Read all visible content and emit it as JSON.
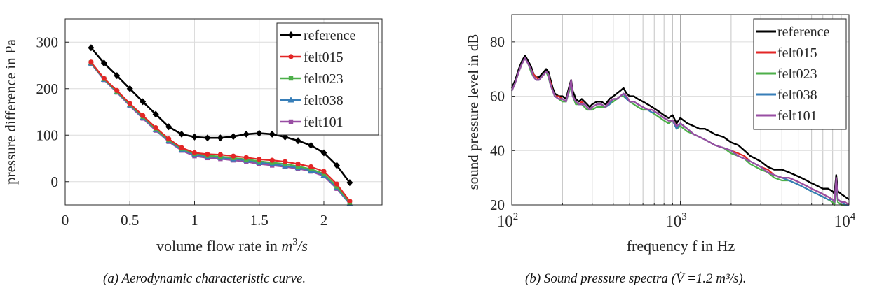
{
  "chart_data": [
    {
      "type": "line",
      "xlabel": "volume flow rate in ",
      "xlabel_math": "m3/s",
      "ylabel": "pressure difference in Pa",
      "xlim": [
        0,
        2.45
      ],
      "ylim": [
        -50,
        350
      ],
      "xticks": [
        0,
        0.5,
        1,
        1.5,
        2
      ],
      "xtick_labels": [
        "0",
        "0.5",
        "1",
        "1.5",
        "2"
      ],
      "yticks": [
        0,
        100,
        200,
        300
      ],
      "ytick_labels": [
        "0",
        "100",
        "200",
        "300"
      ],
      "grid": true,
      "legend": "top-right",
      "x": [
        0.2,
        0.3,
        0.4,
        0.5,
        0.6,
        0.7,
        0.8,
        0.9,
        1.0,
        1.1,
        1.2,
        1.3,
        1.4,
        1.5,
        1.6,
        1.7,
        1.8,
        1.9,
        2.0,
        2.1,
        2.2
      ],
      "series": [
        {
          "name": "reference",
          "color": "#000000",
          "marker": "diamond",
          "values": [
            288,
            255,
            228,
            200,
            172,
            145,
            118,
            102,
            96,
            94,
            94,
            97,
            102,
            104,
            102,
            96,
            88,
            78,
            62,
            35,
            -2
          ]
        },
        {
          "name": "felt015",
          "color": "#e32626",
          "marker": "circle",
          "values": [
            257,
            222,
            196,
            168,
            142,
            116,
            92,
            73,
            62,
            59,
            58,
            55,
            52,
            48,
            46,
            43,
            38,
            32,
            22,
            -5,
            -42
          ]
        },
        {
          "name": "felt023",
          "color": "#4daf4a",
          "marker": "square",
          "values": [
            256,
            221,
            194,
            166,
            140,
            113,
            90,
            71,
            60,
            56,
            54,
            51,
            48,
            44,
            41,
            38,
            33,
            27,
            17,
            -10,
            -45
          ]
        },
        {
          "name": "felt038",
          "color": "#377eb8",
          "marker": "triangle",
          "values": [
            255,
            220,
            193,
            165,
            138,
            112,
            88,
            69,
            58,
            54,
            52,
            49,
            46,
            41,
            38,
            34,
            30,
            24,
            14,
            -13,
            -47
          ]
        },
        {
          "name": "felt101",
          "color": "#984ea3",
          "marker": "square",
          "values": [
            254,
            219,
            192,
            163,
            136,
            110,
            86,
            67,
            55,
            51,
            49,
            46,
            43,
            38,
            35,
            32,
            28,
            22,
            12,
            -15,
            -48
          ]
        }
      ]
    },
    {
      "type": "line",
      "xlabel": "frequency f in Hz",
      "ylabel": "sound pressure level in dB",
      "xscale": "log",
      "xlim": [
        100,
        10000
      ],
      "ylim": [
        20,
        90
      ],
      "xticks": [
        100,
        1000,
        10000
      ],
      "xtick_labels": [
        "10",
        "10",
        "10"
      ],
      "xtick_exponents": [
        "2",
        "3",
        "4"
      ],
      "yticks": [
        20,
        40,
        60,
        80
      ],
      "ytick_labels": [
        "20",
        "40",
        "60",
        "80"
      ],
      "grid": true,
      "legend": "top-right",
      "x": [
        100,
        105,
        110,
        115,
        120,
        125,
        130,
        135,
        140,
        145,
        150,
        155,
        160,
        165,
        170,
        175,
        180,
        190,
        200,
        210,
        220,
        225,
        230,
        240,
        250,
        260,
        270,
        280,
        290,
        300,
        320,
        340,
        360,
        380,
        400,
        420,
        440,
        460,
        480,
        500,
        530,
        560,
        600,
        640,
        680,
        720,
        760,
        800,
        850,
        900,
        950,
        1000,
        1100,
        1200,
        1300,
        1400,
        1500,
        1600,
        1800,
        2000,
        2200,
        2400,
        2600,
        2800,
        3000,
        3300,
        3600,
        4000,
        4400,
        4800,
        5200,
        5600,
        6000,
        6500,
        7000,
        7500,
        8000,
        8200,
        8400,
        8600,
        9000,
        9500,
        10000
      ],
      "series": [
        {
          "name": "reference",
          "color": "#000000",
          "values": [
            63,
            66,
            70,
            73,
            75,
            73,
            71,
            68,
            67,
            67,
            68,
            69,
            70,
            69,
            66,
            63,
            61,
            60,
            60,
            59,
            64,
            66,
            62,
            59,
            58,
            59,
            58,
            57,
            56,
            57,
            58,
            58,
            57,
            59,
            60,
            61,
            62,
            63,
            61,
            60,
            60,
            59,
            58,
            57,
            56,
            55,
            54,
            53,
            52,
            53,
            50,
            52,
            50,
            49,
            48,
            48,
            47,
            46,
            45,
            43,
            42,
            40,
            38,
            37,
            36,
            34,
            33,
            33,
            32,
            31,
            30,
            29,
            28,
            27,
            26,
            26,
            25,
            24,
            31,
            25,
            24,
            23,
            22
          ]
        },
        {
          "name": "felt015",
          "color": "#e32626",
          "values": [
            62,
            65,
            69,
            72,
            74,
            72,
            70,
            68,
            67,
            66,
            67,
            68,
            69,
            68,
            65,
            62,
            60,
            60,
            59,
            58,
            63,
            65,
            60,
            58,
            57,
            58,
            57,
            56,
            55,
            56,
            57,
            57,
            56,
            58,
            59,
            59,
            60,
            61,
            60,
            58,
            58,
            57,
            56,
            55,
            55,
            54,
            53,
            52,
            51,
            51,
            49,
            50,
            48,
            46,
            45,
            44,
            43,
            42,
            41,
            40,
            39,
            38,
            36,
            35,
            34,
            33,
            31,
            30,
            30,
            29,
            28,
            27,
            26,
            25,
            24,
            23,
            22,
            21,
            28,
            22,
            21,
            21,
            20
          ]
        },
        {
          "name": "felt023",
          "color": "#4daf4a",
          "values": [
            62,
            65,
            69,
            72,
            74,
            72,
            69,
            67,
            66,
            66,
            67,
            68,
            69,
            67,
            64,
            62,
            60,
            59,
            58,
            58,
            62,
            65,
            60,
            57,
            57,
            57,
            56,
            55,
            55,
            55,
            56,
            56,
            56,
            57,
            58,
            59,
            60,
            60,
            59,
            58,
            57,
            56,
            55,
            55,
            54,
            53,
            52,
            51,
            50,
            51,
            48,
            49,
            47,
            46,
            45,
            44,
            43,
            42,
            41,
            39,
            38,
            37,
            35,
            34,
            33,
            32,
            30,
            29,
            29,
            28,
            27,
            26,
            25,
            24,
            23,
            22,
            21,
            20,
            27,
            21,
            20,
            20,
            20
          ]
        },
        {
          "name": "felt038",
          "color": "#377eb8",
          "values": [
            62,
            65,
            69,
            72,
            74,
            72,
            70,
            67,
            66,
            66,
            67,
            68,
            69,
            68,
            64,
            62,
            60,
            59,
            59,
            58,
            63,
            65,
            60,
            58,
            57,
            57,
            57,
            56,
            55,
            56,
            57,
            57,
            56,
            57,
            59,
            59,
            60,
            61,
            59,
            58,
            58,
            57,
            56,
            55,
            54,
            54,
            53,
            52,
            51,
            51,
            48,
            50,
            48,
            46,
            45,
            44,
            43,
            42,
            41,
            40,
            38,
            37,
            36,
            35,
            34,
            32,
            31,
            30,
            29,
            28,
            27,
            26,
            25,
            24,
            23,
            22,
            22,
            21,
            29,
            22,
            21,
            20,
            20
          ]
        },
        {
          "name": "felt101",
          "color": "#984ea3",
          "values": [
            62,
            65,
            69,
            72,
            74,
            72,
            70,
            67,
            66,
            66,
            67,
            68,
            69,
            68,
            64,
            62,
            60,
            59,
            59,
            58,
            63,
            66,
            60,
            58,
            57,
            57,
            57,
            56,
            55,
            56,
            57,
            57,
            56,
            58,
            59,
            59,
            60,
            61,
            60,
            58,
            58,
            57,
            56,
            55,
            55,
            54,
            53,
            52,
            51,
            51,
            49,
            50,
            48,
            46,
            45,
            44,
            43,
            42,
            41,
            40,
            38,
            37,
            36,
            35,
            34,
            32,
            31,
            30,
            30,
            29,
            28,
            27,
            26,
            25,
            24,
            23,
            22,
            21,
            30,
            22,
            21,
            21,
            20
          ]
        }
      ]
    }
  ],
  "captions": {
    "left": "(a)  Aerodynamic characteristic curve.",
    "right": "(b)  Sound pressure spectra (V̇ =1.2 m³/s)."
  }
}
